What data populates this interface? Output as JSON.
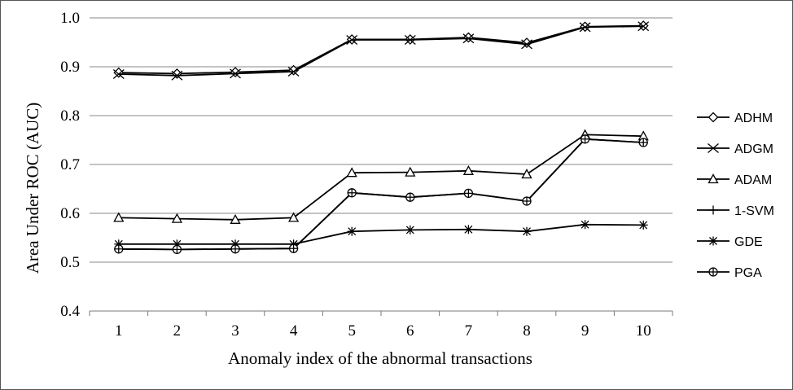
{
  "chart_data": {
    "type": "line",
    "xlabel": "Anomaly index of the abnormal transactions",
    "ylabel": "Area Under ROC (AUC)",
    "x": [
      1,
      2,
      3,
      4,
      5,
      6,
      7,
      8,
      9,
      10
    ],
    "x_tick_labels": [
      "1",
      "2",
      "3",
      "4",
      "5",
      "6",
      "7",
      "8",
      "9",
      "10"
    ],
    "ylim": [
      0.4,
      1.0
    ],
    "y_ticks": [
      0.4,
      0.5,
      0.6,
      0.7,
      0.8,
      0.9,
      1.0
    ],
    "y_tick_labels": [
      "0.4",
      "0.5",
      "0.6",
      "0.7",
      "0.8",
      "0.9",
      "1.0"
    ],
    "grid": "horizontal",
    "legend_position": "right",
    "series": [
      {
        "name": "ADHM",
        "marker": "diamond",
        "values": [
          0.888,
          0.886,
          0.889,
          0.893,
          0.956,
          0.956,
          0.96,
          0.949,
          0.982,
          0.984
        ]
      },
      {
        "name": "ADGM",
        "marker": "x",
        "values": [
          0.885,
          0.882,
          0.886,
          0.89,
          0.955,
          0.955,
          0.958,
          0.946,
          0.981,
          0.983
        ]
      },
      {
        "name": "ADAM",
        "marker": "triangle",
        "values": [
          0.591,
          0.589,
          0.587,
          0.591,
          0.683,
          0.684,
          0.687,
          0.68,
          0.761,
          0.758
        ]
      },
      {
        "name": "1-SVM",
        "marker": "plus",
        "values": [
          0.527,
          0.526,
          0.527,
          0.528,
          0.642,
          0.633,
          0.641,
          0.625,
          0.752,
          0.745
        ]
      },
      {
        "name": "GDE",
        "marker": "asterisk",
        "values": [
          0.537,
          0.537,
          0.537,
          0.537,
          0.563,
          0.566,
          0.567,
          0.563,
          0.577,
          0.576
        ]
      },
      {
        "name": "PGA",
        "marker": "circle",
        "values": [
          0.527,
          0.526,
          0.527,
          0.528,
          0.642,
          0.633,
          0.641,
          0.625,
          0.752,
          0.745
        ]
      }
    ]
  }
}
